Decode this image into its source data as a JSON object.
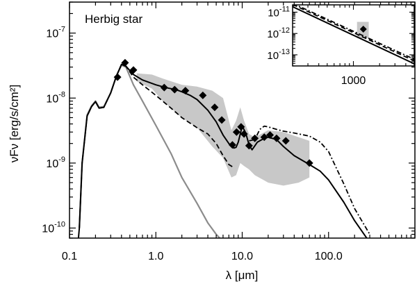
{
  "chart_data": {
    "type": "line",
    "title": "",
    "annotation": "Herbig star",
    "xlabel": "λ [μm]",
    "ylabel": "νFν [erg/s/cm²]",
    "xscale": "log",
    "yscale": "log",
    "xlim": [
      0.1,
      1000
    ],
    "ylim": [
      7e-11,
      3e-07
    ],
    "x_tick_labels": [
      {
        "value": 0.1,
        "label": "0.1"
      },
      {
        "value": 1,
        "label": "1.0"
      },
      {
        "value": 10,
        "label": "10.0"
      },
      {
        "value": 100,
        "label": "100.0"
      }
    ],
    "y_tick_labels": [
      {
        "value": 1e-10,
        "base": "10",
        "exp": "-10"
      },
      {
        "value": 1e-09,
        "base": "10",
        "exp": "-9"
      },
      {
        "value": 1e-08,
        "base": "10",
        "exp": "-8"
      },
      {
        "value": 1e-07,
        "base": "10",
        "exp": "-7"
      }
    ],
    "uncertainty_band": {
      "x": [
        0.6,
        0.9,
        1.2,
        2.0,
        3.0,
        4.5,
        6.0,
        7.5,
        8.5,
        9.5,
        10.5,
        12.0,
        14.0,
        20.0,
        30.0,
        45.0,
        60.0
      ],
      "upper": [
        2.4e-08,
        2.3e-08,
        2e-08,
        1.6e-08,
        1.5e-08,
        1.3e-08,
        1e-08,
        3.2e-09,
        4.5e-09,
        7.2e-09,
        4.5e-09,
        2.8e-09,
        2.5e-09,
        3.2e-09,
        3e-09,
        2.5e-09,
        2.2e-09
      ],
      "lower": [
        1.8e-08,
        1.4e-08,
        9e-09,
        5e-09,
        3.5e-09,
        1.8e-09,
        1.2e-09,
        6e-10,
        6.5e-10,
        1e-09,
        9e-10,
        8e-10,
        6.5e-10,
        5e-10,
        4.5e-10,
        5e-10,
        6e-10
      ]
    },
    "series": [
      {
        "name": "photosphere",
        "style": "gray-solid",
        "x": [
          0.13,
          0.14,
          0.16,
          0.18,
          0.2,
          0.22,
          0.25,
          0.3,
          0.35,
          0.4,
          0.45,
          0.55,
          0.7,
          1.0,
          1.5,
          2.0,
          3.0,
          4.0,
          5.0,
          5.5
        ],
        "y": [
          1e-10,
          1e-09,
          5.5e-09,
          7.6e-09,
          9e-09,
          7.2e-09,
          7.4e-09,
          1.2e-08,
          2.2e-08,
          3.2e-08,
          3e-08,
          1.6e-08,
          9e-09,
          3.8e-09,
          1.4e-09,
          6e-10,
          2.4e-10,
          1.2e-10,
          8e-11,
          7e-11
        ]
      },
      {
        "name": "model-dashed",
        "style": "black-dashed",
        "x": [
          0.13,
          0.14,
          0.16,
          0.18,
          0.2,
          0.22,
          0.25,
          0.3,
          0.35,
          0.4,
          0.45,
          0.55,
          0.7,
          1.0,
          1.5,
          2.0,
          3.0,
          4.0,
          5.0,
          6.0,
          7.0,
          8.0
        ],
        "y": [
          1e-10,
          1e-09,
          5.3e-09,
          7.4e-09,
          8.8e-09,
          7e-09,
          7.2e-09,
          1.2e-08,
          2.2e-08,
          3.3e-08,
          3.1e-08,
          2.1e-08,
          1.6e-08,
          1.1e-08,
          7e-09,
          5e-09,
          3.5e-09,
          2.8e-09,
          2e-09,
          1.3e-09,
          9.5e-10,
          8.5e-10
        ]
      },
      {
        "name": "model-solid",
        "style": "black-solid",
        "x": [
          0.12,
          0.13,
          0.14,
          0.16,
          0.18,
          0.2,
          0.22,
          0.25,
          0.3,
          0.35,
          0.4,
          0.45,
          0.55,
          0.7,
          1.0,
          1.3,
          1.7,
          2.0,
          2.5,
          3.0,
          4.0,
          5.0,
          6.0,
          7.0,
          8.0,
          8.5,
          9.0,
          10.0,
          11.0,
          12.0,
          13.0,
          15.0,
          18.0,
          20.0,
          25.0,
          30.0,
          40.0,
          60.0,
          80.0,
          100.0,
          150.0,
          200.0,
          300.0
        ],
        "y": [
          3e-11,
          1e-10,
          1e-09,
          5.3e-09,
          7.4e-09,
          8.8e-09,
          7e-09,
          7.2e-09,
          1.2e-08,
          2.2e-08,
          3.3e-08,
          3.1e-08,
          2.3e-08,
          1.9e-08,
          1.6e-08,
          1.45e-08,
          1.35e-08,
          1.25e-08,
          1.1e-08,
          9.5e-09,
          6.5e-09,
          4.3e-09,
          2.7e-09,
          2e-09,
          1.7e-09,
          1.75e-09,
          2.1e-09,
          3.7e-09,
          2.9e-09,
          1.9e-09,
          1.6e-09,
          2.1e-09,
          2.4e-09,
          2.5e-09,
          2.3e-09,
          1.8e-09,
          1.3e-09,
          9.5e-10,
          7.5e-10,
          5.5e-10,
          2.5e-10,
          1.3e-10,
          6e-11
        ]
      },
      {
        "name": "model-dash-dot",
        "style": "black-dashdot",
        "x": [
          12.0,
          14.0,
          16.0,
          18.0,
          20.0,
          25.0,
          30.0,
          40.0,
          60.0,
          80.0,
          100.0,
          150.0,
          200.0,
          300.0
        ],
        "y": [
          2.2e-09,
          2.3e-09,
          3.3e-09,
          3.7e-09,
          3.6e-09,
          3.3e-09,
          3.1e-09,
          2.9e-09,
          2.6e-09,
          2.1e-09,
          1.5e-09,
          4.8e-10,
          2e-10,
          8e-11
        ]
      },
      {
        "name": "data",
        "style": "diamond-markers",
        "x": [
          0.36,
          0.44,
          0.55,
          1.25,
          1.65,
          2.2,
          3.5,
          4.8,
          5.8,
          7.7,
          8.6,
          9.7,
          10.5,
          12.0,
          14.0,
          18.0,
          21.0,
          25.0,
          32.0,
          60.0
        ],
        "y": [
          2.1e-08,
          3.5e-08,
          2.7e-08,
          1.45e-08,
          1.35e-08,
          1.3e-08,
          1.1e-08,
          7.2e-09,
          4.6e-09,
          1.9e-09,
          3e-09,
          3.6e-09,
          2.8e-09,
          1.85e-09,
          2.4e-09,
          2.5e-09,
          2.7e-09,
          2.4e-09,
          2.2e-09,
          1e-09
        ]
      }
    ],
    "inset": {
      "xlim": [
        200,
        5000
      ],
      "ylim": [
        3e-14,
        2.2e-11
      ],
      "x_tick_labels": [
        {
          "value": 1000,
          "label": "1000"
        }
      ],
      "y_tick_labels": [
        {
          "value": 1e-11,
          "base": "10",
          "exp": "-11"
        },
        {
          "value": 1e-12,
          "base": "10",
          "exp": "-12"
        },
        {
          "value": 1e-13,
          "base": "10",
          "exp": "-13"
        }
      ],
      "lines": [
        {
          "name": "inset-solid",
          "style": "black-solid",
          "x": [
            200,
            5000
          ],
          "y": [
            1.8e-11,
            3.8e-14
          ]
        },
        {
          "name": "inset-dashed",
          "style": "black-dashed",
          "x": [
            200,
            5000
          ],
          "y": [
            2.3e-11,
            5.2e-14
          ]
        },
        {
          "name": "inset-dash-dot",
          "style": "black-dashdot",
          "x": [
            200,
            5000
          ],
          "y": [
            2.6e-11,
            6.2e-14
          ]
        }
      ],
      "error_box": {
        "x": [
          1100,
          1500
        ],
        "y": [
          6e-13,
          3.5e-12
        ]
      },
      "data": {
        "x": [
          1300
        ],
        "y": [
          1.6e-12
        ]
      }
    }
  }
}
